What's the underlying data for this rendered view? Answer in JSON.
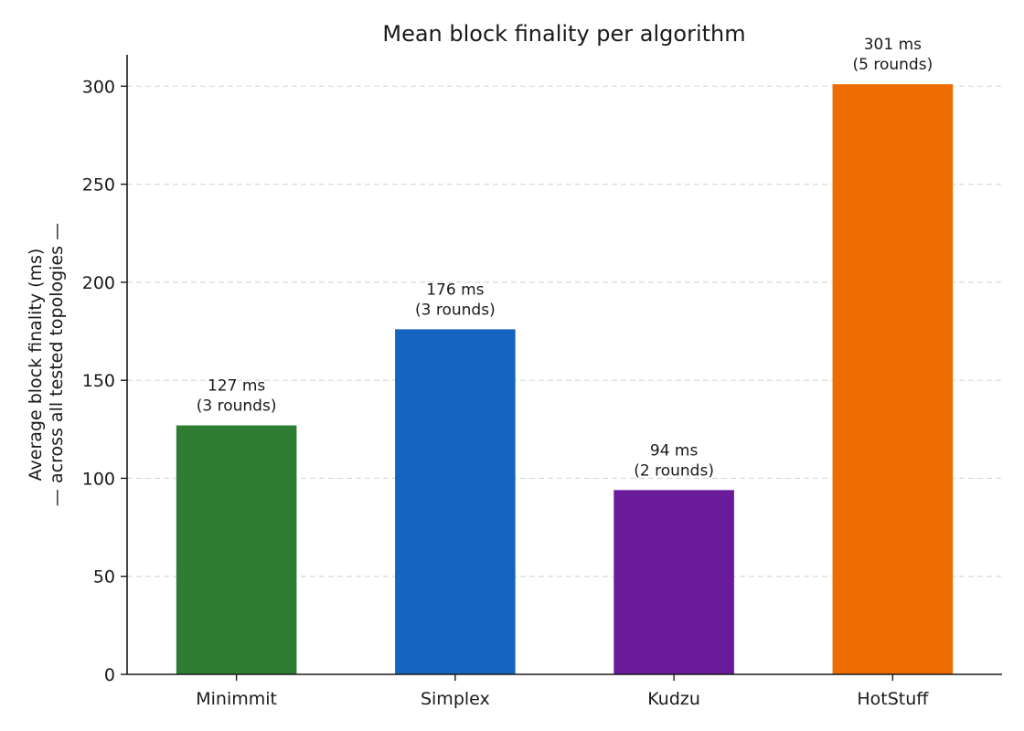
{
  "chart_data": {
    "type": "bar",
    "title": "Mean block finality per algorithm",
    "ylabel_lines": [
      "Average block finality (ms)",
      "— across all tested topologies —"
    ],
    "xlabel": "",
    "categories": [
      "Minimmit",
      "Simplex",
      "Kudzu",
      "HotStuff"
    ],
    "values": [
      127,
      176,
      94,
      301
    ],
    "data_labels": [
      [
        "127 ms",
        "(3 rounds)"
      ],
      [
        "176 ms",
        "(3 rounds)"
      ],
      [
        "94 ms",
        "(2 rounds)"
      ],
      [
        "301 ms",
        "(5 rounds)"
      ]
    ],
    "colors": [
      "#2e7d32",
      "#1565c0",
      "#6a1b9a",
      "#ef6c00"
    ],
    "ylim": [
      0,
      316
    ],
    "yticks": [
      0,
      50,
      100,
      150,
      200,
      250,
      300
    ],
    "grid": true,
    "legend": "none"
  }
}
